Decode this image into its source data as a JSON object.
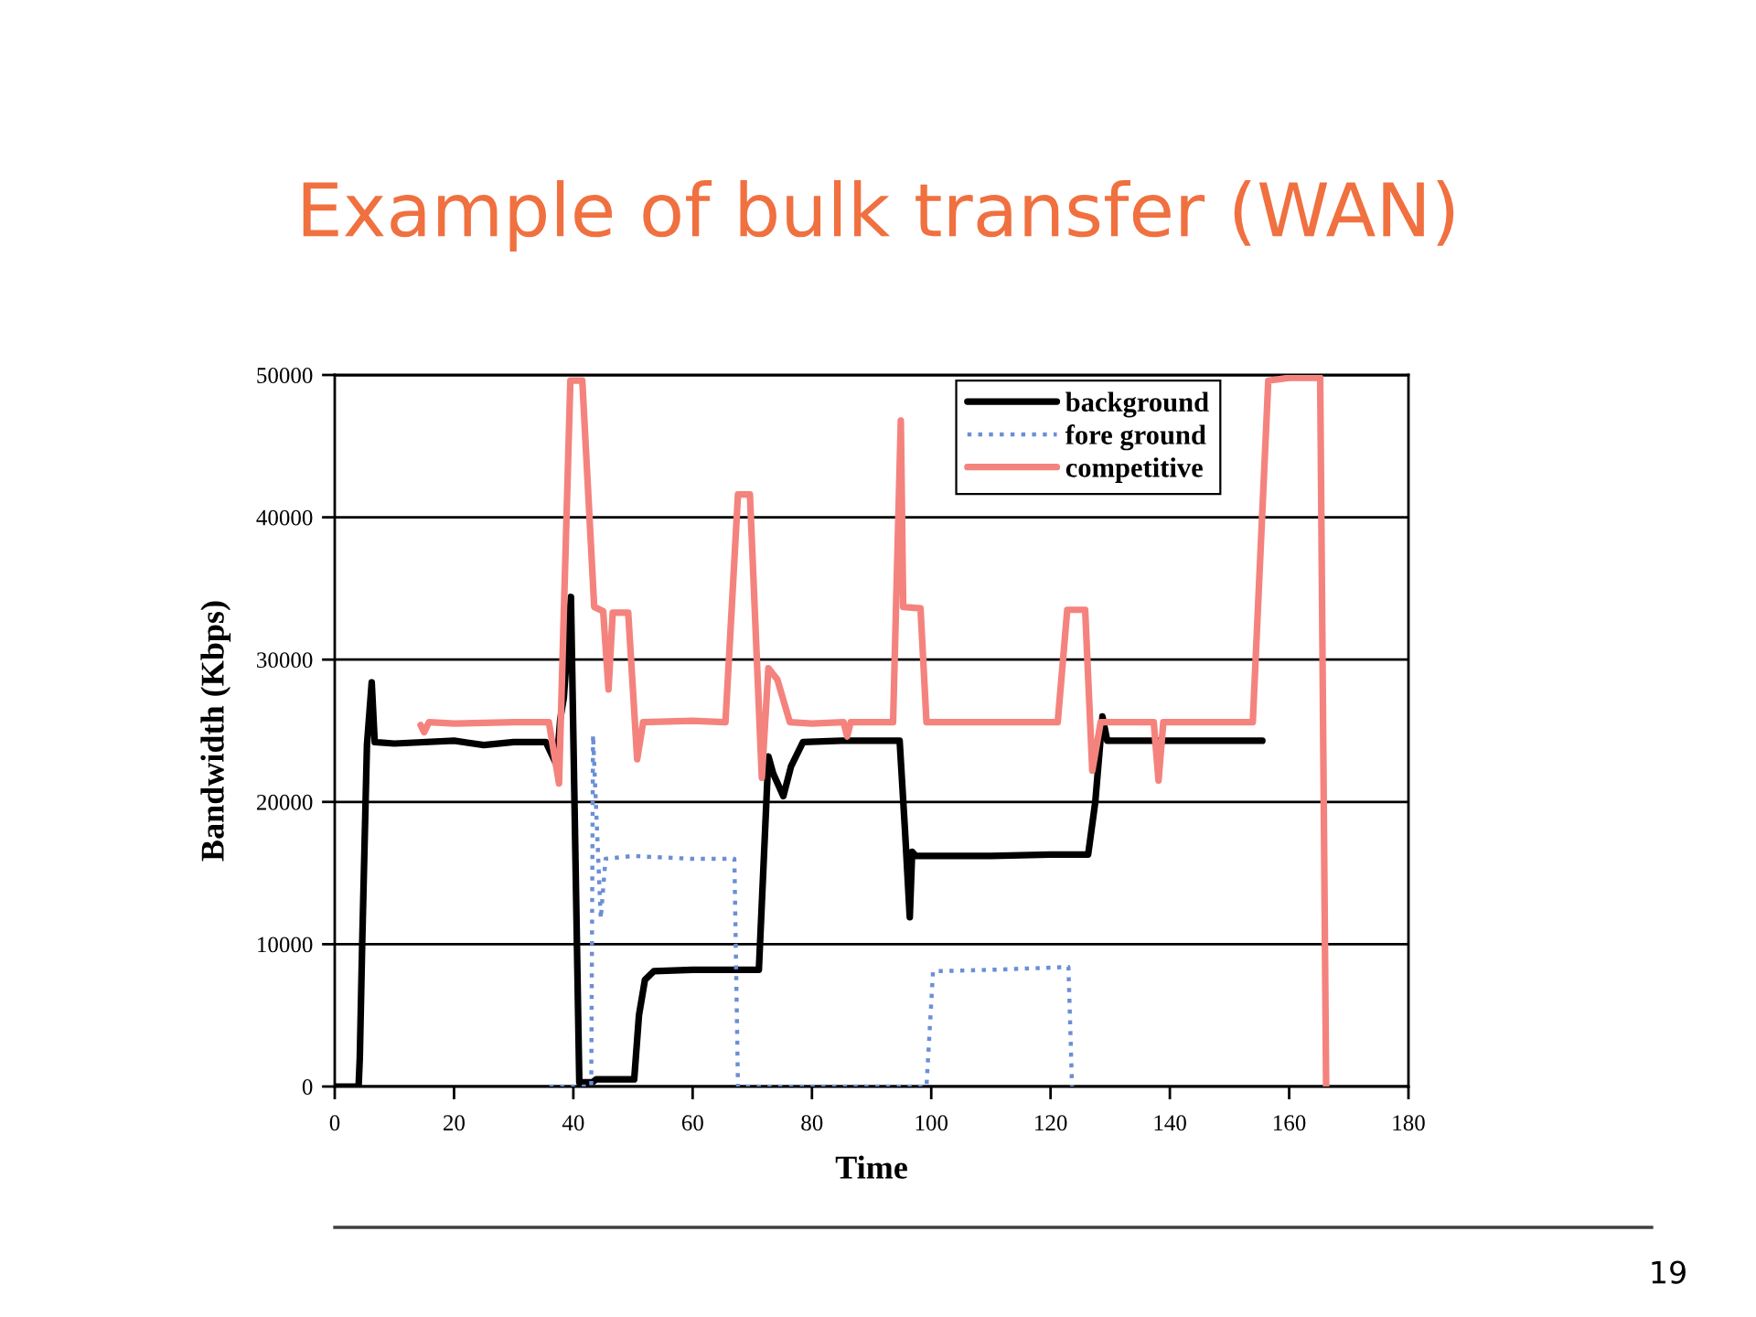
{
  "chart_data": {
    "type": "line",
    "title": "Example of bulk transfer (WAN)",
    "xlabel": "Time",
    "ylabel": "Bandwidth (Kbps)",
    "xlim": [
      0,
      180
    ],
    "xticks": [
      0,
      20,
      40,
      60,
      80,
      100,
      120,
      140,
      160,
      180
    ],
    "ylim": [
      0,
      50000
    ],
    "yticks": [
      0,
      10000,
      20000,
      30000,
      40000,
      50000
    ],
    "grid": "y",
    "legend": "top right",
    "series": [
      {
        "name": "background",
        "color": "#000000",
        "line_style": "solid",
        "x": [
          0,
          4.0,
          4.2,
          4.6,
          5.4,
          6.2,
          6.7,
          10,
          20,
          25,
          30,
          35.4,
          37.2,
          37.8,
          38.4,
          39.6,
          41.0,
          43.2,
          43.8,
          50.2,
          51.0,
          52.0,
          53.5,
          60,
          71.1,
          72.7,
          73.5,
          75.2,
          76.5,
          78.5,
          85,
          94.7,
          95.6,
          96.4,
          96.8,
          97.4,
          110,
          120,
          126.3,
          127.5,
          128.7,
          129.5,
          140,
          155.5
        ],
        "values": [
          0,
          0,
          2000,
          10000,
          24000,
          28400,
          24200,
          24100,
          24300,
          24000,
          24200,
          24200,
          22600,
          25800,
          27300,
          34400,
          300,
          300,
          500,
          500,
          5000,
          7500,
          8100,
          8200,
          8200,
          23200,
          22000,
          20400,
          22500,
          24200,
          24300,
          24300,
          18000,
          11900,
          16500,
          16200,
          16200,
          16300,
          16300,
          20000,
          26000,
          24300,
          24300,
          24300
        ]
      },
      {
        "name": "fore ground",
        "color": "#6b8fd6",
        "line_style": "dotted",
        "x": [
          36,
          43.0,
          43.3,
          44.6,
          45.4,
          50,
          60,
          67.0,
          67.6,
          80,
          90,
          99.2,
          100.3,
          110,
          123.0,
          123.6
        ],
        "values": [
          0,
          0,
          24700,
          11800,
          16000,
          16200,
          16000,
          16000,
          0,
          0,
          0,
          0,
          8100,
          8200,
          8400,
          0
        ]
      },
      {
        "name": "competitive",
        "color": "#f4837e",
        "line_style": "solid",
        "x": [
          14.4,
          15.0,
          15.8,
          20,
          30,
          35.9,
          37.6,
          39.5,
          41.5,
          43.5,
          45.0,
          45.9,
          46.6,
          49.2,
          50.7,
          51.7,
          60,
          65.5,
          67.6,
          69.6,
          71.6,
          72.7,
          74.2,
          76.3,
          80,
          85.3,
          85.9,
          86.5,
          93.6,
          94.9,
          95.3,
          98.2,
          99.2,
          110,
          121.2,
          122.8,
          125.8,
          127.0,
          128.4,
          137.3,
          138.1,
          138.9,
          153.9,
          156.5,
          160,
          165.2,
          166.2
        ],
        "values": [
          25400,
          24900,
          25600,
          25500,
          25600,
          25600,
          21300,
          49600,
          49600,
          33700,
          33400,
          27900,
          33300,
          33300,
          23000,
          25600,
          25700,
          25600,
          41600,
          41600,
          21700,
          29400,
          28600,
          25600,
          25500,
          25600,
          24600,
          25600,
          25600,
          46800,
          33700,
          33600,
          25600,
          25600,
          25600,
          33500,
          33500,
          22200,
          25600,
          25600,
          21500,
          25600,
          25600,
          49600,
          49800,
          49800,
          0
        ]
      }
    ],
    "annotations": [
      "19"
    ]
  }
}
